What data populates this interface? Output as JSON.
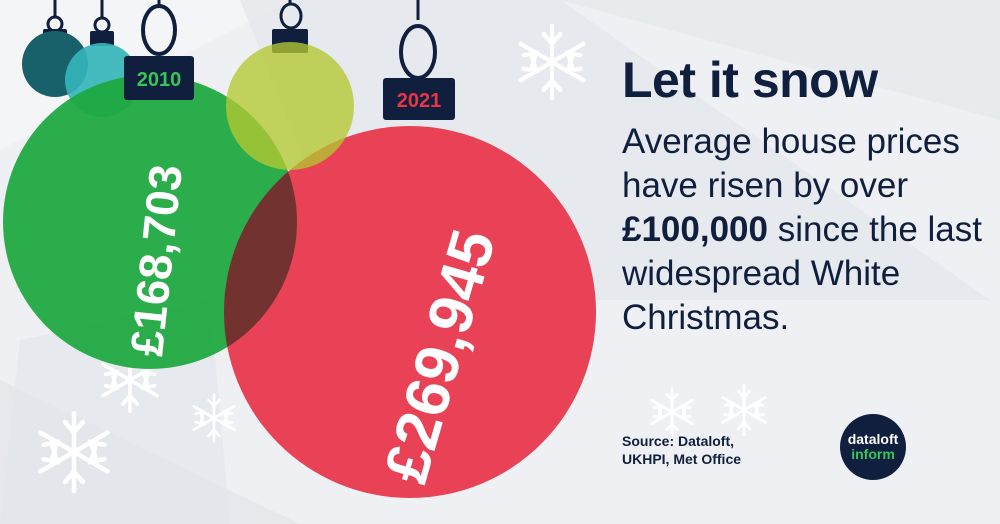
{
  "headline": "Let it snow",
  "body": {
    "part1": "Average house prices have risen by over ",
    "highlight": "£100,000",
    "part2": " since the last widespread White Christmas."
  },
  "source": "Source: Dataloft,\nUKHPI, Met Office",
  "logo": {
    "line1": "dataloft",
    "line2": "inform"
  },
  "colors": {
    "navy": "#0f1f3d",
    "green": "#1fa940",
    "red": "#e8354a",
    "lime": "#b3c831",
    "teal_dark": "#18606a",
    "teal": "#35b4ba",
    "snowflake": "#ffffff"
  },
  "chart_data": {
    "type": "bubble",
    "categories": [
      "2010",
      "2021"
    ],
    "values": [
      168703,
      269945
    ],
    "value_labels": [
      "£168,703",
      "£269,945"
    ],
    "unit": "£"
  }
}
